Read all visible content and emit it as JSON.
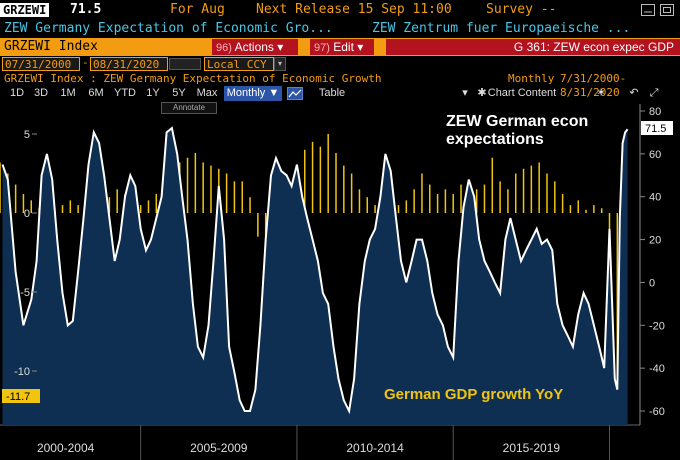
{
  "header": {
    "ticker": "GRZEWI",
    "last_value": "71.5",
    "for_text": "For Aug",
    "next_release": "Next Release 15 Sep 11:00",
    "survey": "Survey --"
  },
  "description": {
    "left": "ZEW Germany Expectation of Economic Gro...",
    "right": "ZEW Zentrum fuer Europaeische ..."
  },
  "menu_bar": {
    "security": "GRZEWI Index",
    "actions_num": "96)",
    "actions_label": "Actions ▾",
    "edit_num": "97)",
    "edit_label": "Edit ▾",
    "graph_title": "G 361: ZEW econ expec GDP"
  },
  "date_range": {
    "start": "07/31/2000",
    "end": "08/31/2020",
    "currency": "Local CCY"
  },
  "series_line": {
    "description": "GRZEWI Index : ZEW Germany Expectation of Economic Growth",
    "frequency": "Monthly",
    "range": "7/31/2000-8/31/2020"
  },
  "toolbar": {
    "periods": [
      "1D",
      "3D",
      "1M",
      "6M",
      "YTD",
      "1Y",
      "5Y",
      "Max"
    ],
    "frequency_button": "Monthly ▼",
    "table_label": "Table",
    "chart_content": "Chart Content",
    "annotate": "Annotate"
  },
  "colors": {
    "accent_orange": "#f39c12",
    "menu_red": "#b3121f",
    "cyan_text": "#49c6e5",
    "area_fill": "#0f2f52",
    "gdp_bars": "#f1c40f",
    "zew_line": "#ffffff"
  },
  "chart_data": {
    "type": "line",
    "title": "ZEW German econ expectations",
    "annotation": "German GDP growth YoY",
    "x_categories": [
      "2000-2004",
      "2005-2009",
      "2010-2014",
      "2015-2019"
    ],
    "right_axis": {
      "label": "",
      "ylim": [
        -60,
        80
      ],
      "ticks": [
        80,
        60,
        40,
        20,
        0,
        -20,
        -40,
        -60
      ]
    },
    "left_axis": {
      "label": "",
      "ylim": [
        -12.5,
        6.5
      ],
      "ticks": [
        "5",
        "0",
        "-5",
        "-10"
      ]
    },
    "last_value_tag": "71.5",
    "last_gdp_tag": "-11.7",
    "series": [
      {
        "name": "ZEW German econ expectations",
        "axis": "right",
        "style": "line+area",
        "x": [
          2000.58,
          2000.75,
          2001.0,
          2001.25,
          2001.5,
          2001.67,
          2001.83,
          2002.0,
          2002.17,
          2002.33,
          2002.5,
          2002.67,
          2002.83,
          2003.0,
          2003.17,
          2003.33,
          2003.5,
          2003.67,
          2003.83,
          2004.0,
          2004.17,
          2004.33,
          2004.5,
          2004.67,
          2004.83,
          2005.0,
          2005.17,
          2005.33,
          2005.5,
          2005.67,
          2005.83,
          2006.0,
          2006.17,
          2006.33,
          2006.5,
          2006.67,
          2006.83,
          2007.0,
          2007.17,
          2007.33,
          2007.5,
          2007.67,
          2007.83,
          2008.0,
          2008.17,
          2008.33,
          2008.5,
          2008.67,
          2008.83,
          2009.0,
          2009.17,
          2009.33,
          2009.5,
          2009.67,
          2009.83,
          2010.0,
          2010.17,
          2010.33,
          2010.5,
          2010.67,
          2010.83,
          2011.0,
          2011.17,
          2011.33,
          2011.5,
          2011.67,
          2011.83,
          2012.0,
          2012.17,
          2012.33,
          2012.5,
          2012.67,
          2012.83,
          2013.0,
          2013.17,
          2013.33,
          2013.5,
          2013.67,
          2013.83,
          2014.0,
          2014.17,
          2014.33,
          2014.5,
          2014.67,
          2014.83,
          2015.0,
          2015.17,
          2015.33,
          2015.5,
          2015.67,
          2015.83,
          2016.0,
          2016.17,
          2016.33,
          2016.5,
          2016.67,
          2016.83,
          2017.0,
          2017.17,
          2017.33,
          2017.5,
          2017.67,
          2017.83,
          2018.0,
          2018.17,
          2018.33,
          2018.5,
          2018.67,
          2018.83,
          2019.0,
          2019.17,
          2019.33,
          2019.5,
          2019.67,
          2019.83,
          2020.0,
          2020.17,
          2020.25,
          2020.33,
          2020.42,
          2020.5,
          2020.58
        ],
        "values": [
          55,
          48,
          5,
          -20,
          -8,
          10,
          50,
          60,
          48,
          20,
          -5,
          -20,
          -18,
          5,
          30,
          55,
          70,
          65,
          50,
          30,
          10,
          20,
          40,
          50,
          45,
          25,
          15,
          20,
          30,
          40,
          70,
          72,
          60,
          40,
          20,
          -10,
          -30,
          -35,
          -20,
          10,
          45,
          20,
          -30,
          -42,
          -55,
          -60,
          -60,
          -50,
          -20,
          20,
          50,
          58,
          52,
          50,
          45,
          55,
          40,
          30,
          20,
          10,
          -5,
          -10,
          -30,
          -45,
          -55,
          -60,
          -45,
          -10,
          10,
          20,
          25,
          40,
          60,
          52,
          30,
          10,
          0,
          10,
          20,
          20,
          10,
          -5,
          -15,
          -20,
          -30,
          -35,
          10,
          35,
          48,
          40,
          20,
          10,
          5,
          0,
          -5,
          20,
          30,
          20,
          10,
          15,
          20,
          25,
          18,
          20,
          15,
          -10,
          -20,
          -25,
          -30,
          -15,
          -5,
          -10,
          -20,
          -30,
          -40,
          25,
          -45,
          -50,
          30,
          65,
          70,
          71.5
        ]
      },
      {
        "name": "German GDP growth YoY",
        "axis": "left",
        "style": "bar",
        "x": [
          2000.5,
          2000.75,
          2001.0,
          2001.25,
          2001.5,
          2001.75,
          2002.0,
          2002.25,
          2002.5,
          2002.75,
          2003.0,
          2003.25,
          2003.5,
          2003.75,
          2004.0,
          2004.25,
          2004.5,
          2004.75,
          2005.0,
          2005.25,
          2005.5,
          2005.75,
          2006.0,
          2006.25,
          2006.5,
          2006.75,
          2007.0,
          2007.25,
          2007.5,
          2007.75,
          2008.0,
          2008.25,
          2008.5,
          2008.75,
          2009.0,
          2009.25,
          2009.5,
          2009.75,
          2010.0,
          2010.25,
          2010.5,
          2010.75,
          2011.0,
          2011.25,
          2011.5,
          2011.75,
          2012.0,
          2012.25,
          2012.5,
          2012.75,
          2013.0,
          2013.25,
          2013.5,
          2013.75,
          2014.0,
          2014.25,
          2014.5,
          2014.75,
          2015.0,
          2015.25,
          2015.5,
          2015.75,
          2016.0,
          2016.25,
          2016.5,
          2016.75,
          2017.0,
          2017.25,
          2017.5,
          2017.75,
          2018.0,
          2018.25,
          2018.5,
          2018.75,
          2019.0,
          2019.25,
          2019.5,
          2019.75,
          2020.0,
          2020.25
        ],
        "values": [
          3.2,
          2.5,
          1.8,
          1.2,
          0.8,
          0.3,
          -0.2,
          0.3,
          0.5,
          0.8,
          0.5,
          -0.3,
          -0.5,
          0.3,
          1.0,
          1.5,
          1.2,
          0.8,
          0.5,
          0.8,
          1.2,
          1.5,
          2.5,
          3.2,
          3.5,
          3.8,
          3.2,
          3.0,
          2.8,
          2.5,
          2.0,
          2.0,
          1.0,
          -1.5,
          -6.5,
          -6.0,
          -5.0,
          -2.0,
          2.5,
          4.0,
          4.5,
          4.2,
          5.0,
          3.8,
          3.0,
          2.5,
          1.5,
          1.0,
          0.5,
          0.2,
          -0.2,
          0.5,
          0.8,
          1.5,
          2.5,
          1.8,
          1.2,
          1.5,
          1.2,
          1.8,
          1.8,
          1.5,
          1.8,
          3.5,
          2.0,
          1.5,
          2.5,
          2.8,
          3.0,
          3.2,
          2.5,
          2.0,
          1.2,
          0.5,
          0.8,
          0.2,
          0.5,
          0.3,
          -2.0,
          -11.7
        ]
      }
    ]
  }
}
